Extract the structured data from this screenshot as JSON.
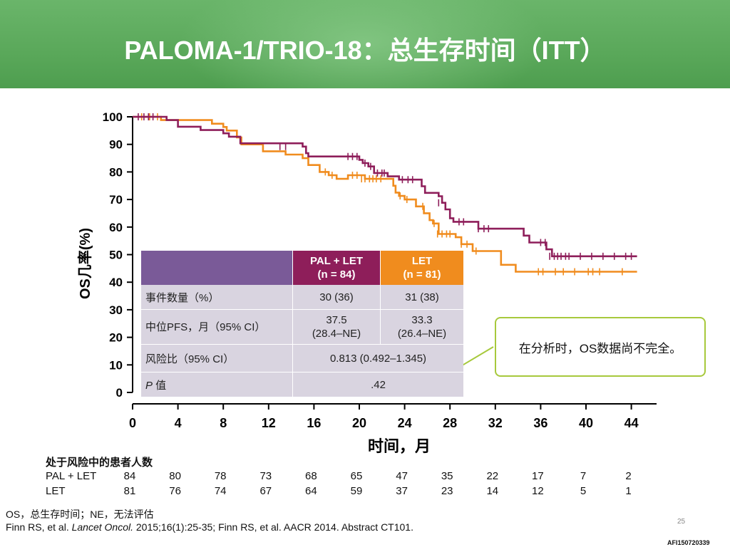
{
  "title": "PALOMA-1/TRIO-18：总生存时间（ITT）",
  "chart_data": {
    "type": "line",
    "subtype": "kaplan-meier",
    "ylabel": "OS几率(%)",
    "xlabel": "时间，月",
    "xlim": [
      0,
      45
    ],
    "ylim": [
      0,
      100
    ],
    "x_ticks": [
      "0",
      "4",
      "8",
      "12",
      "16",
      "20",
      "24",
      "28",
      "32",
      "36",
      "40",
      "44"
    ],
    "y_ticks": [
      "0",
      "10",
      "20",
      "30",
      "40",
      "50",
      "60",
      "70",
      "80",
      "90",
      "100"
    ],
    "colors": {
      "pal": "#8e1e5a",
      "let": "#f08c1e"
    },
    "series": [
      {
        "name": "PAL + LET",
        "color": "#8e1e5a",
        "steps": [
          [
            0,
            100
          ],
          [
            2,
            100
          ],
          [
            3,
            98.8
          ],
          [
            4,
            96.4
          ],
          [
            6,
            95.2
          ],
          [
            8,
            94
          ],
          [
            8.5,
            92.8
          ],
          [
            9.5,
            90.4
          ],
          [
            15,
            89.2
          ],
          [
            15.3,
            86.8
          ],
          [
            15.5,
            85.6
          ],
          [
            20,
            84.4
          ],
          [
            20.3,
            83.2
          ],
          [
            20.8,
            82
          ],
          [
            21.3,
            79.6
          ],
          [
            22.5,
            78.4
          ],
          [
            23.5,
            77.2
          ],
          [
            25.5,
            74.8
          ],
          [
            25.8,
            72.4
          ],
          [
            27,
            71.2
          ],
          [
            27.3,
            68.8
          ],
          [
            27.6,
            66.4
          ],
          [
            28,
            63.2
          ],
          [
            28.3,
            61.9
          ],
          [
            30.5,
            59.4
          ],
          [
            34.5,
            56.9
          ],
          [
            35,
            54.4
          ],
          [
            36.5,
            51.9
          ],
          [
            37,
            49.4
          ],
          [
            44.5,
            49.4
          ]
        ],
        "censors": [
          [
            0.5,
            100
          ],
          [
            1,
            100
          ],
          [
            1.4,
            100
          ],
          [
            1.8,
            100
          ],
          [
            13,
            89.2
          ],
          [
            13.5,
            89.2
          ],
          [
            19,
            85.6
          ],
          [
            19.4,
            85.6
          ],
          [
            19.8,
            85.6
          ],
          [
            20.5,
            83.2
          ],
          [
            21,
            82
          ],
          [
            21.6,
            79.6
          ],
          [
            22,
            79.6
          ],
          [
            22.2,
            79.6
          ],
          [
            23.8,
            77.2
          ],
          [
            24.3,
            77.2
          ],
          [
            24.7,
            77.2
          ],
          [
            27,
            68.8
          ],
          [
            28.8,
            61.9
          ],
          [
            29.2,
            61.9
          ],
          [
            30.5,
            59.4
          ],
          [
            31,
            59.4
          ],
          [
            31.4,
            59.4
          ],
          [
            36,
            54.4
          ],
          [
            36.4,
            54.4
          ],
          [
            36.8,
            49.4
          ],
          [
            37.2,
            49.4
          ],
          [
            37.5,
            49.4
          ],
          [
            37.8,
            49.4
          ],
          [
            38.2,
            49.4
          ],
          [
            38.5,
            49.4
          ],
          [
            39.5,
            49.4
          ],
          [
            40.5,
            49.4
          ],
          [
            41.5,
            49.4
          ],
          [
            42.5,
            49.4
          ],
          [
            43.5,
            49.4
          ],
          [
            44,
            49.4
          ]
        ]
      },
      {
        "name": "LET",
        "color": "#f08c1e",
        "steps": [
          [
            0,
            100
          ],
          [
            2,
            100
          ],
          [
            2.5,
            98.8
          ],
          [
            7,
            97.5
          ],
          [
            8,
            96.3
          ],
          [
            8.3,
            95
          ],
          [
            9.2,
            92.5
          ],
          [
            9.6,
            90
          ],
          [
            11.5,
            87.5
          ],
          [
            13.5,
            86.3
          ],
          [
            15,
            85
          ],
          [
            15.5,
            82.5
          ],
          [
            16.5,
            80
          ],
          [
            17.3,
            78.8
          ],
          [
            18,
            77.5
          ],
          [
            19,
            78.8
          ],
          [
            20.5,
            77.5
          ],
          [
            23,
            75
          ],
          [
            23.2,
            72.5
          ],
          [
            23.5,
            71.3
          ],
          [
            24,
            70
          ],
          [
            25,
            67.5
          ],
          [
            25.7,
            65
          ],
          [
            26.2,
            62.5
          ],
          [
            26.5,
            61.3
          ],
          [
            27,
            57.5
          ],
          [
            28.5,
            56.3
          ],
          [
            29,
            53.8
          ],
          [
            30,
            51.3
          ],
          [
            32.5,
            46.3
          ],
          [
            33.8,
            43.8
          ],
          [
            44.5,
            43.8
          ]
        ],
        "censors": [
          [
            0.8,
            100
          ],
          [
            1.5,
            100
          ],
          [
            2.2,
            100
          ],
          [
            17,
            80
          ],
          [
            17.6,
            78.8
          ],
          [
            19.4,
            78.8
          ],
          [
            19.8,
            78.8
          ],
          [
            20.2,
            77.5
          ],
          [
            20.5,
            77.5
          ],
          [
            20.9,
            77.5
          ],
          [
            21.2,
            77.5
          ],
          [
            21.5,
            77.5
          ],
          [
            21.9,
            77.5
          ],
          [
            23.6,
            71.3
          ],
          [
            24.2,
            70
          ],
          [
            25.6,
            67.5
          ],
          [
            26.6,
            61.3
          ],
          [
            26.9,
            57.5
          ],
          [
            27.3,
            57.5
          ],
          [
            27.7,
            57.5
          ],
          [
            28,
            57.5
          ],
          [
            29,
            53.8
          ],
          [
            29.5,
            53.8
          ],
          [
            30.3,
            51.3
          ],
          [
            35.8,
            43.8
          ],
          [
            36.2,
            43.8
          ],
          [
            37.3,
            43.8
          ],
          [
            38,
            43.8
          ],
          [
            39,
            43.8
          ],
          [
            40.2,
            43.8
          ],
          [
            40.6,
            43.8
          ],
          [
            41.2,
            43.8
          ],
          [
            43.2,
            43.8
          ]
        ]
      }
    ]
  },
  "table": {
    "header": {
      "pal_line1": "PAL + LET",
      "pal_line2": "(n = 84)",
      "let_line1": "LET",
      "let_line2": "(n = 81)"
    },
    "rows": {
      "events": {
        "label": "事件数量（%）",
        "pal": "30 (36)",
        "let": "31 (38)"
      },
      "median": {
        "label": "中位PFS，月（95% CI）",
        "pal_line1": "37.5",
        "pal_line2": "(28.4–NE)",
        "let_line1": "33.3",
        "let_line2": "(26.4–NE)"
      },
      "hr": {
        "label": "风险比（95% CI）",
        "value": "0.813 (0.492–1.345)"
      },
      "p": {
        "label_italic": "P",
        "label_rest": " 值",
        "value": ".42"
      }
    }
  },
  "callout": "在分析时，OS数据尚不完全。",
  "risk": {
    "title": "处于风险中的患者人数",
    "rows": [
      {
        "label": "PAL + LET",
        "values": [
          "84",
          "80",
          "78",
          "73",
          "68",
          "65",
          "47",
          "35",
          "22",
          "17",
          "7",
          "2"
        ]
      },
      {
        "label": "LET",
        "values": [
          "81",
          "76",
          "74",
          "67",
          "64",
          "59",
          "37",
          "23",
          "14",
          "12",
          "5",
          "1"
        ]
      }
    ]
  },
  "footnotes": {
    "abbrev": "OS，总生存时间；NE，无法评估",
    "ref_pre": "Finn RS, et al. ",
    "ref_journal": "Lancet Oncol.",
    "ref_post": " 2015;16(1):25-35; Finn RS, et al. AACR 2014. Abstract CT101."
  },
  "slide_number": "25",
  "doc_code": "AFI150720339"
}
